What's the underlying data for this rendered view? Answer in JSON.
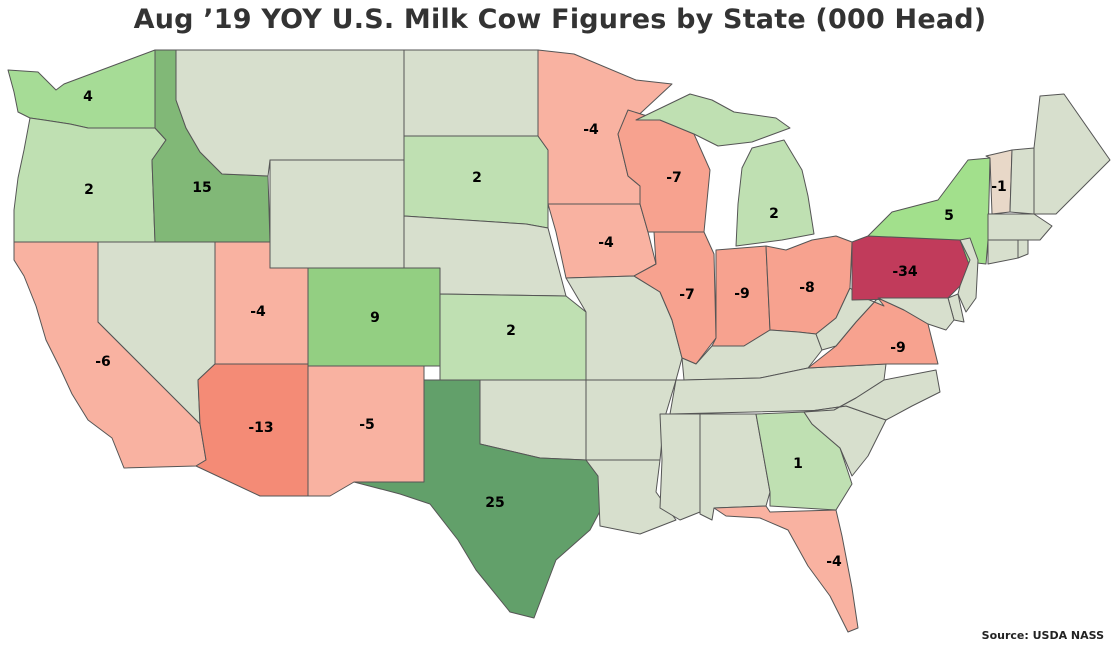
{
  "title": "Aug ’19 YOY U.S. Milk Cow Figures by State (000 Head)",
  "source": "Source: USDA NASS",
  "colors": {
    "neutral": "#d7dfcd",
    "neg_light": "#f9b2a1",
    "neg_mid": "#f7a28f",
    "neg_strong": "#f48b76",
    "neg_max": "#c13b5b",
    "neg_tiny": "#e8d8c8",
    "pos_light": "#bfe0b2",
    "pos_lightmid": "#a6dc96",
    "pos_mid": "#93cf82",
    "pos_strong": "#81b877",
    "pos_max": "#62a06a",
    "ny": "#a2e08c"
  },
  "states": [
    {
      "id": "WA",
      "value": "4",
      "color": "pos_lightmid"
    },
    {
      "id": "OR",
      "value": "2",
      "color": "pos_light"
    },
    {
      "id": "ID",
      "value": "15",
      "color": "pos_strong"
    },
    {
      "id": "CA",
      "value": "-6",
      "color": "neg_light"
    },
    {
      "id": "NV",
      "value": "",
      "color": "neutral"
    },
    {
      "id": "UT",
      "value": "-4",
      "color": "neg_light"
    },
    {
      "id": "AZ",
      "value": "-13",
      "color": "neg_strong"
    },
    {
      "id": "MT",
      "value": "",
      "color": "neutral"
    },
    {
      "id": "WY",
      "value": "",
      "color": "neutral"
    },
    {
      "id": "CO",
      "value": "9",
      "color": "pos_mid"
    },
    {
      "id": "NM",
      "value": "-5",
      "color": "neg_light"
    },
    {
      "id": "ND",
      "value": "",
      "color": "neutral"
    },
    {
      "id": "SD",
      "value": "2",
      "color": "pos_light"
    },
    {
      "id": "NE",
      "value": "",
      "color": "neutral"
    },
    {
      "id": "KS",
      "value": "2",
      "color": "pos_light"
    },
    {
      "id": "OK",
      "value": "",
      "color": "neutral"
    },
    {
      "id": "TX",
      "value": "25",
      "color": "pos_max"
    },
    {
      "id": "MN",
      "value": "-4",
      "color": "neg_light"
    },
    {
      "id": "IA",
      "value": "-4",
      "color": "neg_light"
    },
    {
      "id": "MO",
      "value": "",
      "color": "neutral"
    },
    {
      "id": "AR",
      "value": "",
      "color": "neutral"
    },
    {
      "id": "LA",
      "value": "",
      "color": "neutral"
    },
    {
      "id": "WI",
      "value": "-7",
      "color": "neg_mid"
    },
    {
      "id": "IL",
      "value": "-7",
      "color": "neg_mid"
    },
    {
      "id": "MI",
      "value": "2",
      "color": "pos_light"
    },
    {
      "id": "MI_UP",
      "value": "",
      "color": "pos_light"
    },
    {
      "id": "IN",
      "value": "-9",
      "color": "neg_mid"
    },
    {
      "id": "OH",
      "value": "-8",
      "color": "neg_mid"
    },
    {
      "id": "KY",
      "value": "",
      "color": "neutral"
    },
    {
      "id": "TN",
      "value": "",
      "color": "neutral"
    },
    {
      "id": "MS",
      "value": "",
      "color": "neutral"
    },
    {
      "id": "AL",
      "value": "",
      "color": "neutral"
    },
    {
      "id": "GA",
      "value": "1",
      "color": "pos_light"
    },
    {
      "id": "FL",
      "value": "-4",
      "color": "neg_light"
    },
    {
      "id": "SC",
      "value": "",
      "color": "neutral"
    },
    {
      "id": "NC",
      "value": "",
      "color": "neutral"
    },
    {
      "id": "VA",
      "value": "-9",
      "color": "neg_mid"
    },
    {
      "id": "WV",
      "value": "",
      "color": "neutral"
    },
    {
      "id": "PA",
      "value": "-34",
      "color": "neg_max"
    },
    {
      "id": "NY",
      "value": "5",
      "color": "ny"
    },
    {
      "id": "VT",
      "value": "-1",
      "color": "neg_tiny"
    },
    {
      "id": "NH",
      "value": "",
      "color": "neutral"
    },
    {
      "id": "ME",
      "value": "",
      "color": "neutral"
    },
    {
      "id": "MA",
      "value": "",
      "color": "neutral"
    },
    {
      "id": "CT",
      "value": "",
      "color": "neutral"
    },
    {
      "id": "RI",
      "value": "",
      "color": "neutral"
    },
    {
      "id": "NJ",
      "value": "",
      "color": "neutral"
    },
    {
      "id": "DE",
      "value": "",
      "color": "neutral"
    },
    {
      "id": "MD",
      "value": "",
      "color": "neutral"
    }
  ]
}
